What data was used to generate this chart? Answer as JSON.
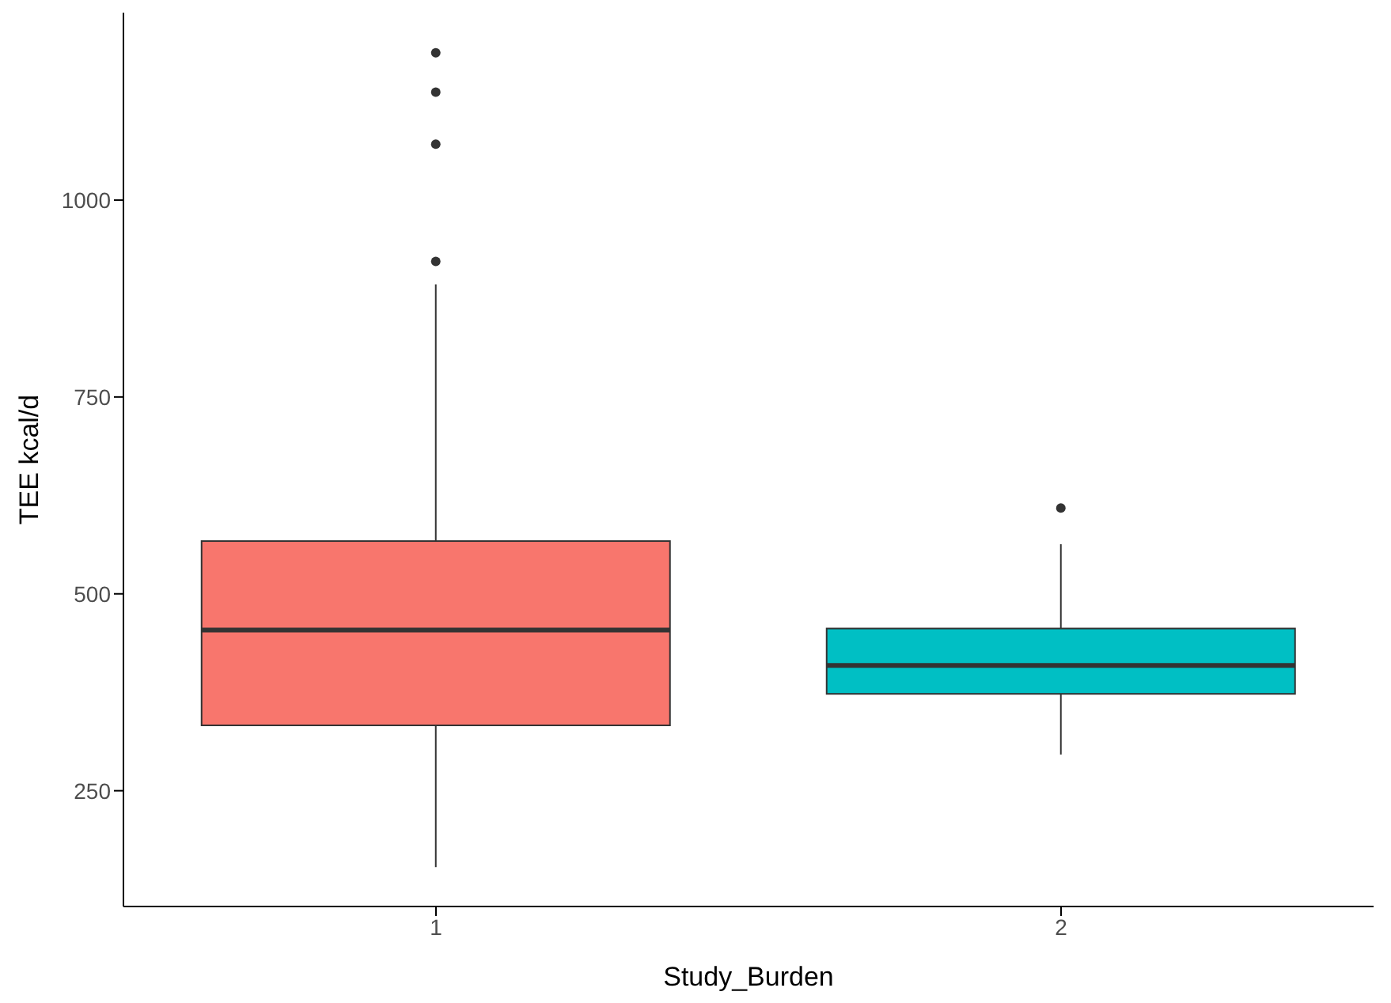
{
  "chart_data": {
    "type": "box",
    "xlabel": "Study_Burden",
    "ylabel": "TEE kcal/d",
    "categories": [
      "1",
      "2"
    ],
    "colors": [
      "#f8766d",
      "#00bfc4"
    ],
    "boxes": [
      {
        "low": 153,
        "q1": 333,
        "median": 454,
        "q3": 567,
        "high": 893,
        "outliers": [
          922,
          1071,
          1137,
          1187
        ]
      },
      {
        "low": 296,
        "q1": 373,
        "median": 409,
        "q3": 456,
        "high": 563,
        "outliers": [
          609
        ]
      }
    ],
    "ylim": [
      103,
      1238
    ],
    "yticks": [
      250,
      500,
      750,
      1000
    ],
    "grid": false,
    "legend": false
  }
}
